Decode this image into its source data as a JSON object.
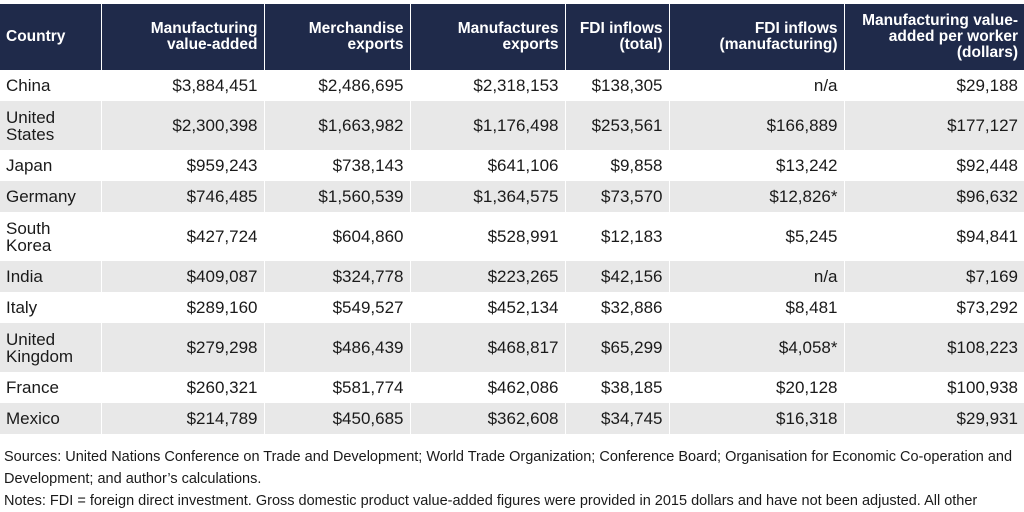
{
  "table": {
    "headers": [
      "Country",
      "Manufacturing value-added",
      "Merchandise exports",
      "Manufactures exports",
      "FDI inflows (total)",
      "FDI inflows (manufacturing)",
      "Manufacturing value-added per worker (dollars)"
    ],
    "rows": [
      {
        "country": "China",
        "mva": "$3,884,451",
        "merch": "$2,486,695",
        "manuf": "$2,318,153",
        "fdi_total": "$138,305",
        "fdi_mfg": "n/a",
        "per_worker": "$29,188"
      },
      {
        "country": "United States",
        "mva": "$2,300,398",
        "merch": "$1,663,982",
        "manuf": "$1,176,498",
        "fdi_total": "$253,561",
        "fdi_mfg": "$166,889",
        "per_worker": "$177,127"
      },
      {
        "country": "Japan",
        "mva": "$959,243",
        "merch": "$738,143",
        "manuf": "$641,106",
        "fdi_total": "$9,858",
        "fdi_mfg": "$13,242",
        "per_worker": "$92,448"
      },
      {
        "country": "Germany",
        "mva": "$746,485",
        "merch": "$1,560,539",
        "manuf": "$1,364,575",
        "fdi_total": "$73,570",
        "fdi_mfg": "$12,826*",
        "per_worker": "$96,632"
      },
      {
        "country": "South Korea",
        "mva": "$427,724",
        "merch": "$604,860",
        "manuf": "$528,991",
        "fdi_total": "$12,183",
        "fdi_mfg": "$5,245",
        "per_worker": "$94,841"
      },
      {
        "country": "India",
        "mva": "$409,087",
        "merch": "$324,778",
        "manuf": "$223,265",
        "fdi_total": "$42,156",
        "fdi_mfg": "n/a",
        "per_worker": "$7,169"
      },
      {
        "country": "Italy",
        "mva": "$289,160",
        "merch": "$549,527",
        "manuf": "$452,134",
        "fdi_total": "$32,886",
        "fdi_mfg": "$8,481",
        "per_worker": "$73,292"
      },
      {
        "country": "United Kingdom",
        "mva": "$279,298",
        "merch": "$486,439",
        "manuf": "$468,817",
        "fdi_total": "$65,299",
        "fdi_mfg": "$4,058*",
        "per_worker": "$108,223"
      },
      {
        "country": "France",
        "mva": "$260,321",
        "merch": "$581,774",
        "manuf": "$462,086",
        "fdi_total": "$38,185",
        "fdi_mfg": "$20,128",
        "per_worker": "$100,938"
      },
      {
        "country": "Mexico",
        "mva": "$214,789",
        "merch": "$450,685",
        "manuf": "$362,608",
        "fdi_total": "$34,745",
        "fdi_mfg": "$16,318",
        "per_worker": "$29,931"
      }
    ]
  },
  "sources": "Sources: United Nations Conference on Trade and Development; World Trade Organization; Conference Board; Organisation for Economic Co-operation and Development; and author’s calculations.",
  "notes": "Notes: FDI = foreign direct investment. Gross domestic product value-added figures were provided in 2015 dollars and have not been adjusted. All other"
}
